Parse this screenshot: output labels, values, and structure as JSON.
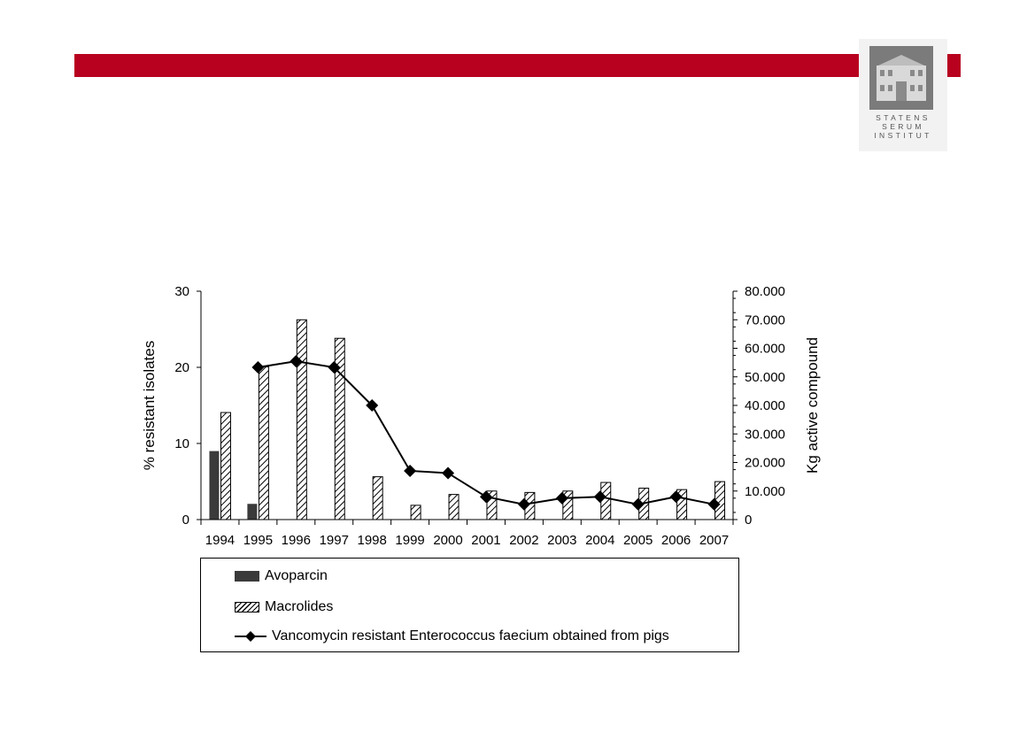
{
  "branding": {
    "logo_lines": [
      "STATENS",
      "SERUM",
      "INSTITUT"
    ],
    "banner_color": "#b8001f"
  },
  "chart_data": {
    "type": "bar",
    "categories": [
      "1994",
      "1995",
      "1996",
      "1997",
      "1998",
      "1999",
      "2000",
      "2001",
      "2002",
      "2003",
      "2004",
      "2005",
      "2006",
      "2007"
    ],
    "ylabel": "% resistant isolates",
    "y2label": "Kg active compound",
    "ylim": [
      0,
      30
    ],
    "yticks": [
      "0",
      "10",
      "20",
      "30"
    ],
    "y2lim": [
      0,
      80000
    ],
    "y2ticks": [
      "0",
      "10.000",
      "20.000",
      "30.000",
      "40.000",
      "50.000",
      "60.000",
      "70.000",
      "80.000"
    ],
    "series": [
      {
        "name": "Avoparcin",
        "kind": "bar",
        "axis": "right",
        "color": "#3a3a3a",
        "values": [
          24000,
          5500,
          null,
          null,
          null,
          null,
          null,
          null,
          null,
          null,
          null,
          null,
          null,
          null
        ]
      },
      {
        "name": "Macrolides",
        "kind": "bar",
        "axis": "right",
        "pattern": "hatch",
        "values": [
          37500,
          53500,
          70000,
          63500,
          15000,
          5000,
          8800,
          10000,
          9500,
          10000,
          13000,
          11000,
          10500,
          13300
        ]
      },
      {
        "name": "Vancomycin resistant Enterococcus faecium obtained from pigs",
        "kind": "line",
        "axis": "left",
        "marker": "diamond",
        "values": [
          null,
          20,
          20.8,
          20,
          15,
          6.4,
          6.1,
          3,
          2,
          2.8,
          3,
          2,
          3,
          2
        ]
      }
    ],
    "legend_position": "bottom"
  }
}
